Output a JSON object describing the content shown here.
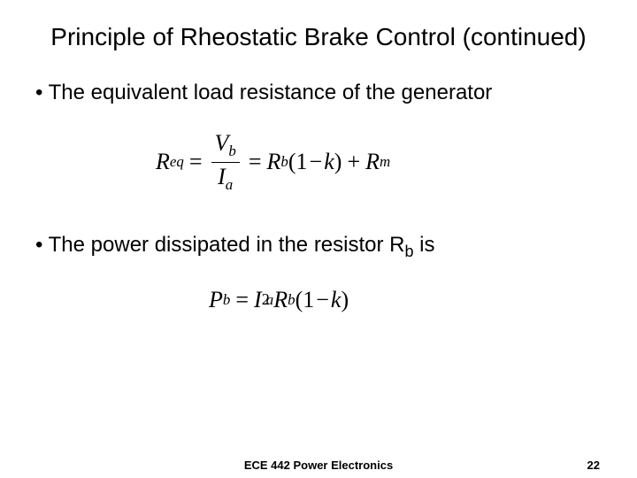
{
  "title": "Principle of Rheostatic Brake Control (continued)",
  "bullets": {
    "b1": "The equivalent load resistance of the generator",
    "b2_prefix": "The power dissipated in the resistor R",
    "b2_sub": "b",
    "b2_suffix": " is"
  },
  "eq1": {
    "lhs_R": "R",
    "lhs_sub": "eq",
    "eqsign": "=",
    "frac_num_V": "V",
    "frac_num_sub": "b",
    "frac_den_I": "I",
    "frac_den_sub": "a",
    "eqsign2": "=",
    "Rb_R": "R",
    "Rb_sub": "b",
    "lp": "(",
    "one": "1",
    "minus": "−",
    "k": "k",
    "rp": ")",
    "plus": "+",
    "Rm_R": "R",
    "Rm_sub": "m"
  },
  "eq2": {
    "P": "P",
    "P_sub": "b",
    "eqsign": "=",
    "I": "I",
    "I_sup": "2",
    "I_sub": "a",
    "Rb_R": "R",
    "Rb_sub": "b",
    "lp": "(",
    "one": "1",
    "minus": "−",
    "k": "k",
    "rp": ")"
  },
  "footer": {
    "center": "ECE 442 Power Electronics",
    "page": "22"
  },
  "colors": {
    "text": "#000000",
    "bg": "#ffffff"
  }
}
